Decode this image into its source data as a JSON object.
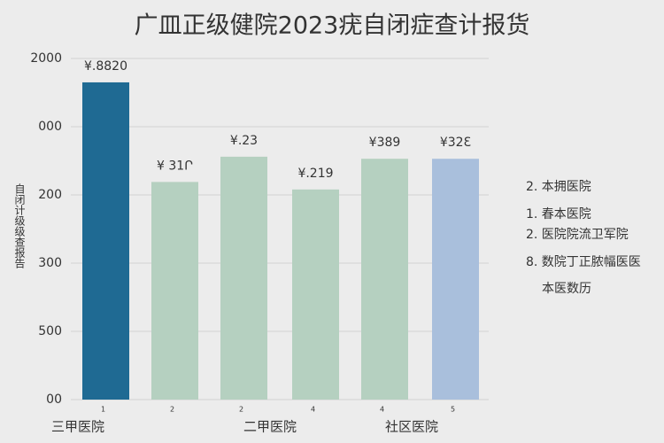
{
  "chart_data": {
    "type": "bar",
    "title": "广皿正级健院2023疣自闭症查计报货",
    "ylabel": "自闭计级级查报告",
    "categories": [
      "1",
      "2",
      "2",
      "4",
      "4",
      "5"
    ],
    "values": [
      4.65,
      3.19,
      3.56,
      3.08,
      3.53,
      3.53
    ],
    "colors": [
      "#1f6a93",
      "#b5d0c0",
      "#b5d0c0",
      "#b5d0c0",
      "#b5d0c0",
      "#a9bfdc"
    ],
    "bar_labels": [
      "¥.8820",
      "¥ 31Ր",
      "¥.23",
      "¥.219",
      "¥389",
      "¥32Ɛ"
    ],
    "groups": [
      "三甲医院",
      "二甲医院",
      "社区医院"
    ],
    "ylim": [
      0,
      5
    ],
    "yticks": [
      {
        "value": 5,
        "label": "2000"
      },
      {
        "value": 4,
        "label": "000"
      },
      {
        "value": 3,
        "label": "200"
      },
      {
        "value": 2,
        "label": "300"
      },
      {
        "value": 1,
        "label": "500"
      },
      {
        "value": 0,
        "label": "00"
      }
    ],
    "grid": true,
    "notes": [
      "2. 本拥医院",
      "1. 春本医院",
      "2. 医院院流卫军院",
      "8. 数院丁正脓幅医医",
      "本医数历"
    ]
  }
}
